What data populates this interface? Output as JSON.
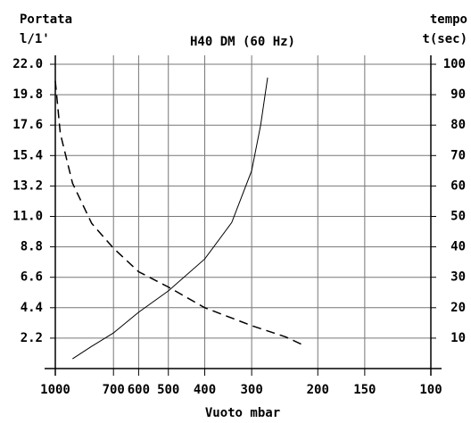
{
  "chart_data": {
    "type": "line",
    "title": "H40 DM (60 Hz)",
    "ylabel": [
      "Portata",
      "l/1'"
    ],
    "y2label": [
      "tempo",
      "t(sec)"
    ],
    "xlabel": "Vuoto mbar",
    "xlim": [
      1000,
      100
    ],
    "xscale": "log",
    "xticks": [
      1000,
      700,
      600,
      500,
      400,
      300,
      200,
      150,
      100
    ],
    "ylim": [
      0,
      22
    ],
    "yticks": [
      2.2,
      4.4,
      6.6,
      8.8,
      {
        "value": 11,
        "label": "11.0"
      },
      13.2,
      15.4,
      17.6,
      19.8,
      {
        "value": 22,
        "label": "22.0"
      }
    ],
    "y2lim": [
      0,
      100
    ],
    "y2ticks": [
      10,
      20,
      30,
      40,
      50,
      60,
      70,
      80,
      90,
      100
    ],
    "grid": true,
    "series": [
      {
        "axis": "y",
        "dash": true,
        "color": "#000000",
        "x": [
          1000,
          970,
          900,
          800,
          700,
          600,
          500,
          400,
          300,
          244,
          219
        ],
        "values": [
          20.8,
          17.0,
          13.4,
          10.5,
          8.7,
          7.0,
          5.9,
          4.4,
          3.1,
          2.3,
          1.7
        ]
      },
      {
        "axis": "y2",
        "dash": false,
        "color": "#000000",
        "x": [
          900,
          800,
          700,
          600,
          500,
          400,
          339,
          300,
          284,
          272
        ],
        "values": [
          3.2,
          7.3,
          11.7,
          18.5,
          25.5,
          36,
          48,
          65,
          80,
          95.6
        ]
      }
    ]
  }
}
